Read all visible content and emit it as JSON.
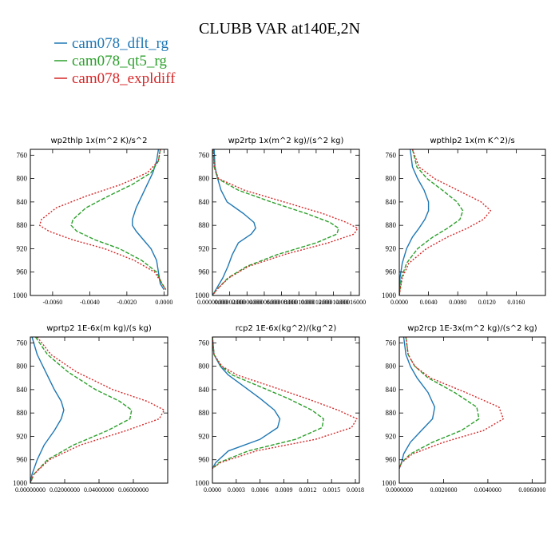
{
  "chart_data": {
    "type": "line",
    "title": "CLUBB VAR at140E,2N",
    "legend_placement": "top-left",
    "series_styles": [
      {
        "name": "cam078_dflt_rg",
        "color": "#1f77b4",
        "dash": "solid"
      },
      {
        "name": "cam078_qt5_rg",
        "color": "#2ca02c",
        "dash": "dashed"
      },
      {
        "name": "cam078_expldiff",
        "color": "#d62728",
        "dash": "dotted"
      }
    ],
    "panels": [
      {
        "title": "wp2thlp   1x(m^2 K)/s^2",
        "y_axis": "pressure",
        "ylim": [
          1000,
          750
        ],
        "yticks": [
          760,
          800,
          840,
          880,
          920,
          960,
          1000
        ],
        "xlim": [
          -0.0072,
          0.0002
        ],
        "xticks": [
          -0.006,
          -0.004,
          -0.002,
          0.0
        ],
        "xtick_labels": [
          "-0.0060",
          "-0.0040",
          "-0.0020",
          "0.0000"
        ],
        "series": [
          {
            "name": "cam078_dflt_rg",
            "x": [
              -0.0003,
              -0.0004,
              -0.0006,
              -0.0009,
              -0.0012,
              -0.0015,
              -0.0017,
              -0.0017,
              -0.0015,
              -0.0011,
              -0.0007,
              -0.0004,
              -0.0003,
              -0.0002,
              0.0
            ],
            "y": [
              750,
              770,
              790,
              810,
              830,
              850,
              870,
              880,
              890,
              905,
              920,
              940,
              960,
              980,
              990
            ]
          },
          {
            "name": "cam078_qt5_rg",
            "x": [
              -0.0002,
              -0.0003,
              -0.0007,
              -0.0017,
              -0.003,
              -0.0042,
              -0.0049,
              -0.005,
              -0.0047,
              -0.0037,
              -0.0024,
              -0.0012,
              -0.0004,
              -0.0001,
              0.0001
            ],
            "y": [
              750,
              770,
              790,
              810,
              830,
              850,
              870,
              880,
              890,
              905,
              920,
              940,
              960,
              980,
              990
            ]
          },
          {
            "name": "cam078_expldiff",
            "x": [
              -0.0002,
              -0.0003,
              -0.0009,
              -0.0023,
              -0.0042,
              -0.0058,
              -0.0066,
              -0.0067,
              -0.0062,
              -0.0049,
              -0.0032,
              -0.0016,
              -0.0005,
              -0.0001,
              0.0001
            ],
            "y": [
              750,
              770,
              790,
              810,
              830,
              850,
              870,
              880,
              890,
              905,
              920,
              940,
              960,
              980,
              990
            ]
          }
        ]
      },
      {
        "title": "wp2rtp   1x(m^2 kg)/(s^2 kg)",
        "y_axis": "pressure",
        "ylim": [
          1000,
          750
        ],
        "yticks": [
          760,
          800,
          840,
          880,
          920,
          960,
          1000
        ],
        "xlim": [
          0.0,
          0.00017
        ],
        "xticks": [
          0.0,
          2e-05,
          4e-05,
          6e-05,
          8e-05,
          0.0001,
          0.00012,
          0.00014,
          0.00016
        ],
        "xtick_labels": [
          "0.00000000",
          "0.00002000",
          "0.00004000",
          "0.00006000",
          "0.00008000",
          "0.00010000",
          "0.00012000",
          "0.00014000",
          "0.00016000"
        ],
        "series": [
          {
            "name": "cam078_dflt_rg",
            "x": [
              2e-06,
              3e-06,
              6e-06,
              1e-05,
              1.7e-05,
              3.6e-05,
              4.8e-05,
              5e-05,
              4.5e-05,
              3e-05,
              2.3e-05,
              1.8e-05,
              1.2e-05,
              4e-06,
              0.0
            ],
            "y": [
              750,
              780,
              800,
              820,
              840,
              860,
              875,
              885,
              895,
              910,
              930,
              950,
              970,
              990,
              1000
            ]
          },
          {
            "name": "cam078_qt5_rg",
            "x": [
              1e-06,
              2e-06,
              6e-06,
              3e-05,
              6.8e-05,
              0.000109,
              0.000136,
              0.000146,
              0.000144,
              0.00012,
              7.5e-05,
              4e-05,
              1.8e-05,
              5e-06,
              0.0
            ],
            "y": [
              750,
              780,
              800,
              820,
              840,
              860,
              875,
              885,
              895,
              910,
              930,
              950,
              970,
              990,
              1000
            ]
          },
          {
            "name": "cam078_expldiff",
            "x": [
              1e-06,
              2e-06,
              7e-06,
              3.7e-05,
              8.3e-05,
              0.000128,
              0.000155,
              0.000168,
              0.000164,
              0.000134,
              8.3e-05,
              4.2e-05,
              1.9e-05,
              5e-06,
              0.0
            ],
            "y": [
              750,
              780,
              800,
              820,
              840,
              860,
              875,
              885,
              895,
              910,
              930,
              950,
              970,
              990,
              1000
            ]
          }
        ]
      },
      {
        "title": "wpthlp2   1x(m K^2)/s",
        "y_axis": "pressure",
        "ylim": [
          1000,
          750
        ],
        "yticks": [
          760,
          800,
          840,
          880,
          920,
          960,
          1000
        ],
        "xlim": [
          0.0,
          0.02
        ],
        "xticks": [
          0.0,
          0.004,
          0.008,
          0.012,
          0.016
        ],
        "xtick_labels": [
          "0.0000",
          "0.0040",
          "0.0080",
          "0.0120",
          "0.0160"
        ],
        "series": [
          {
            "name": "cam078_dflt_rg",
            "x": [
              0.0015,
              0.0018,
              0.0025,
              0.0034,
              0.004,
              0.004,
              0.0035,
              0.0027,
              0.0018,
              0.001,
              0.0004,
              0.0001,
              0.0
            ],
            "y": [
              750,
              780,
              800,
              820,
              840,
              855,
              870,
              885,
              900,
              920,
              945,
              970,
              1000
            ]
          },
          {
            "name": "cam078_qt5_rg",
            "x": [
              0.0018,
              0.0024,
              0.0038,
              0.0059,
              0.0079,
              0.0087,
              0.0083,
              0.0066,
              0.0046,
              0.0025,
              0.001,
              0.0003,
              0.0
            ],
            "y": [
              750,
              780,
              800,
              820,
              840,
              855,
              870,
              885,
              900,
              920,
              945,
              970,
              1000
            ]
          },
          {
            "name": "cam078_expldiff",
            "x": [
              0.0018,
              0.0027,
              0.0048,
              0.008,
              0.0112,
              0.0125,
              0.0115,
              0.0093,
              0.0066,
              0.0037,
              0.0013,
              0.0004,
              0.0
            ],
            "y": [
              750,
              780,
              800,
              820,
              840,
              855,
              870,
              885,
              900,
              920,
              945,
              970,
              1000
            ]
          }
        ]
      },
      {
        "title": "wprtp2   1E-6x(m kg)/(s kg)",
        "y_axis": "pressure",
        "ylim": [
          1000,
          750
        ],
        "yticks": [
          760,
          800,
          840,
          880,
          920,
          960,
          1000
        ],
        "xlim": [
          0.0,
          0.08
        ],
        "xticks": [
          0.0,
          0.02,
          0.04,
          0.06
        ],
        "xtick_labels": [
          "0.00000000",
          "0.02000000",
          "0.04000000",
          "0.06000000"
        ],
        "series": [
          {
            "name": "cam078_dflt_rg",
            "x": [
              0.001,
              0.004,
              0.009,
              0.014,
              0.018,
              0.0195,
              0.018,
              0.014,
              0.008,
              0.004,
              0.001,
              0.0
            ],
            "y": [
              750,
              780,
              810,
              840,
              860,
              875,
              890,
              910,
              935,
              960,
              985,
              1000
            ]
          },
          {
            "name": "cam078_qt5_rg",
            "x": [
              0.003,
              0.01,
              0.022,
              0.038,
              0.052,
              0.059,
              0.058,
              0.045,
              0.025,
              0.01,
              0.002,
              0.0
            ],
            "y": [
              750,
              780,
              810,
              840,
              860,
              875,
              890,
              910,
              935,
              960,
              985,
              1000
            ]
          },
          {
            "name": "cam078_expldiff",
            "x": [
              0.004,
              0.012,
              0.027,
              0.048,
              0.068,
              0.078,
              0.075,
              0.056,
              0.029,
              0.011,
              0.002,
              0.0
            ],
            "y": [
              750,
              780,
              810,
              840,
              860,
              875,
              890,
              910,
              935,
              960,
              985,
              1000
            ]
          }
        ]
      },
      {
        "title": "rcp2   1E-6x(kg^2)/(kg^2)",
        "y_axis": "pressure",
        "ylim": [
          1000,
          750
        ],
        "yticks": [
          760,
          800,
          840,
          880,
          920,
          960,
          1000
        ],
        "xlim": [
          0.0,
          0.00185
        ],
        "xticks": [
          0.0,
          0.0003,
          0.0006,
          0.0009,
          0.0012,
          0.0015,
          0.0018
        ],
        "xtick_labels": [
          "0.0000",
          "0.0003",
          "0.0006",
          "0.0009",
          "0.0012",
          "0.0015",
          "0.0018"
        ],
        "series": [
          {
            "name": "cam078_dflt_rg",
            "x": [
              0.0,
              2e-05,
              0.0001,
              0.0002,
              0.0004,
              0.0006,
              0.00078,
              0.00085,
              0.00082,
              0.0006,
              0.0002,
              4e-05,
              0.0
            ],
            "y": [
              750,
              780,
              800,
              815,
              835,
              855,
              875,
              890,
              905,
              925,
              945,
              965,
              975
            ]
          },
          {
            "name": "cam078_qt5_rg",
            "x": [
              0.0,
              2e-05,
              0.00011,
              0.00025,
              0.0006,
              0.00095,
              0.00125,
              0.0014,
              0.00138,
              0.00105,
              0.00045,
              8e-05,
              0.0
            ],
            "y": [
              750,
              780,
              800,
              815,
              835,
              855,
              875,
              890,
              905,
              925,
              945,
              965,
              975
            ]
          },
          {
            "name": "cam078_expldiff",
            "x": [
              0.0,
              2e-05,
              0.00012,
              0.00031,
              0.00075,
              0.00118,
              0.00158,
              0.00182,
              0.00175,
              0.0013,
              0.00055,
              0.0001,
              0.0
            ],
            "y": [
              750,
              780,
              800,
              815,
              835,
              855,
              875,
              890,
              905,
              925,
              945,
              965,
              975
            ]
          }
        ]
      },
      {
        "title": "wp2rcp   1E-3x(m^2 kg)/(s^2 kg)",
        "y_axis": "pressure",
        "ylim": [
          1000,
          750
        ],
        "yticks": [
          760,
          800,
          840,
          880,
          920,
          960,
          1000
        ],
        "xlim": [
          0.0,
          0.0066
        ],
        "xticks": [
          0.0,
          0.002,
          0.004,
          0.006
        ],
        "xtick_labels": [
          "0.0000000",
          "0.0020000",
          "0.0040000",
          "0.0060000"
        ],
        "series": [
          {
            "name": "cam078_dflt_rg",
            "x": [
              0.0002,
              0.0003,
              0.0005,
              0.0008,
              0.0013,
              0.0016,
              0.0015,
              0.001,
              0.0005,
              0.0002,
              0.0001,
              0.0
            ],
            "y": [
              750,
              780,
              800,
              820,
              845,
              870,
              890,
              910,
              930,
              950,
              965,
              975
            ]
          },
          {
            "name": "cam078_qt5_rg",
            "x": [
              0.0003,
              0.0004,
              0.0007,
              0.0013,
              0.0025,
              0.0035,
              0.0036,
              0.0028,
              0.0015,
              0.0005,
              0.0001,
              0.0
            ],
            "y": [
              750,
              780,
              800,
              820,
              845,
              870,
              890,
              910,
              930,
              950,
              965,
              975
            ]
          },
          {
            "name": "cam078_expldiff",
            "x": [
              0.0003,
              0.0004,
              0.0007,
              0.0014,
              0.003,
              0.0045,
              0.0047,
              0.0038,
              0.002,
              0.0006,
              0.0001,
              0.0
            ],
            "y": [
              750,
              780,
              800,
              820,
              845,
              870,
              890,
              910,
              930,
              950,
              965,
              975
            ]
          }
        ]
      }
    ]
  }
}
